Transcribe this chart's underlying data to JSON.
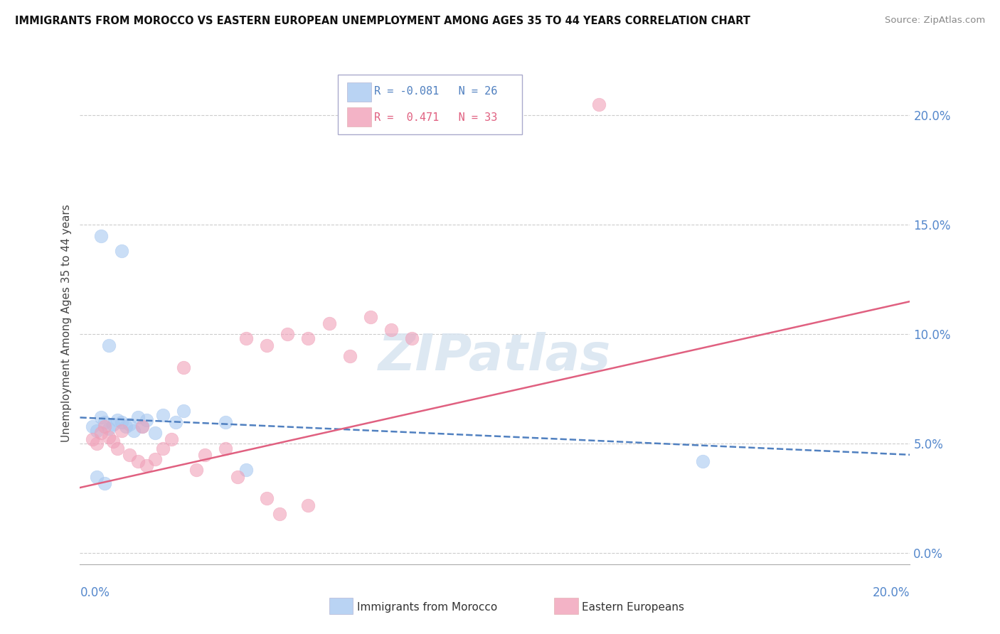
{
  "title": "IMMIGRANTS FROM MOROCCO VS EASTERN EUROPEAN UNEMPLOYMENT AMONG AGES 35 TO 44 YEARS CORRELATION CHART",
  "source": "Source: ZipAtlas.com",
  "ylabel": "Unemployment Among Ages 35 to 44 years",
  "legend1_r": "-0.081",
  "legend1_n": "26",
  "legend2_r": " 0.471",
  "legend2_n": "33",
  "blue_color": "#a8c8f0",
  "pink_color": "#f0a0b8",
  "blue_line_color": "#5080c0",
  "pink_line_color": "#e06080",
  "watermark_color": "#d8e4f0",
  "blue_scatter": [
    [
      0.3,
      5.8
    ],
    [
      0.4,
      5.6
    ],
    [
      0.5,
      6.2
    ],
    [
      0.6,
      6.0
    ],
    [
      0.7,
      5.7
    ],
    [
      0.8,
      5.9
    ],
    [
      0.9,
      6.1
    ],
    [
      1.0,
      6.0
    ],
    [
      1.1,
      5.8
    ],
    [
      1.2,
      5.9
    ],
    [
      1.3,
      5.6
    ],
    [
      1.4,
      6.2
    ],
    [
      1.5,
      5.8
    ],
    [
      1.6,
      6.1
    ],
    [
      1.8,
      5.5
    ],
    [
      2.0,
      6.3
    ],
    [
      2.3,
      6.0
    ],
    [
      2.5,
      6.5
    ],
    [
      3.5,
      6.0
    ],
    [
      0.5,
      14.5
    ],
    [
      0.7,
      9.5
    ],
    [
      1.0,
      13.8
    ],
    [
      15.0,
      4.2
    ],
    [
      4.0,
      3.8
    ],
    [
      0.4,
      3.5
    ],
    [
      0.6,
      3.2
    ]
  ],
  "pink_scatter": [
    [
      0.3,
      5.2
    ],
    [
      0.4,
      5.0
    ],
    [
      0.5,
      5.5
    ],
    [
      0.6,
      5.8
    ],
    [
      0.7,
      5.3
    ],
    [
      0.8,
      5.1
    ],
    [
      0.9,
      4.8
    ],
    [
      1.0,
      5.6
    ],
    [
      1.2,
      4.5
    ],
    [
      1.4,
      4.2
    ],
    [
      1.5,
      5.8
    ],
    [
      1.6,
      4.0
    ],
    [
      1.8,
      4.3
    ],
    [
      2.0,
      4.8
    ],
    [
      2.2,
      5.2
    ],
    [
      2.5,
      8.5
    ],
    [
      3.0,
      4.5
    ],
    [
      3.5,
      4.8
    ],
    [
      4.0,
      9.8
    ],
    [
      4.5,
      9.5
    ],
    [
      5.0,
      10.0
    ],
    [
      5.5,
      9.8
    ],
    [
      6.0,
      10.5
    ],
    [
      7.0,
      10.8
    ],
    [
      7.5,
      10.2
    ],
    [
      8.0,
      9.8
    ],
    [
      4.5,
      2.5
    ],
    [
      5.5,
      2.2
    ],
    [
      4.8,
      1.8
    ],
    [
      12.5,
      20.5
    ],
    [
      2.8,
      3.8
    ],
    [
      3.8,
      3.5
    ],
    [
      6.5,
      9.0
    ]
  ],
  "blue_line": [
    [
      0,
      6.2
    ],
    [
      20,
      4.5
    ]
  ],
  "pink_line": [
    [
      0,
      3.0
    ],
    [
      20,
      11.5
    ]
  ],
  "xlim": [
    0,
    20
  ],
  "ylim": [
    -0.5,
    21.5
  ],
  "ytick_vals": [
    0,
    5,
    10,
    15,
    20
  ],
  "xtick_vals": [
    0,
    5,
    10,
    15,
    20
  ]
}
